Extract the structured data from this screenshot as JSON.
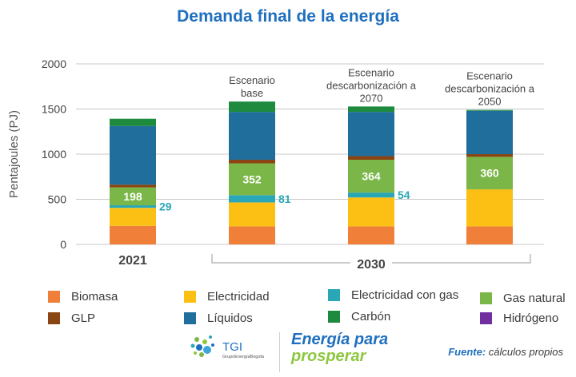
{
  "title": "Demanda final de la energía",
  "chart_data": {
    "type": "bar",
    "stacked": true,
    "ylabel": "Pentajoules (PJ)",
    "ylim": [
      0,
      2000
    ],
    "yticks": [
      0,
      500,
      1000,
      1500,
      2000
    ],
    "grid": true,
    "categories": [
      "2021",
      "Escenario base",
      "Escenario descarbonización a 2070",
      "Escenario descarbonización a 2050"
    ],
    "category_labels": [
      [],
      [
        "Escenario",
        "base"
      ],
      [
        "Escenario",
        "descarbonización a",
        "2070"
      ],
      [
        "Escenario",
        "descarbonización a",
        "2050"
      ]
    ],
    "group_labels": [
      "2021",
      "2030"
    ],
    "series": [
      {
        "name": "Biomasa",
        "color": "#f07f3a",
        "values": [
          205,
          200,
          200,
          200
        ]
      },
      {
        "name": "Electricidad",
        "color": "#fcc015",
        "values": [
          200,
          265,
          320,
          410
        ]
      },
      {
        "name": "Electricidad con gas",
        "color": "#2aa7b6",
        "values": [
          29,
          81,
          54,
          0
        ]
      },
      {
        "name": "Gas natural",
        "color": "#7ab648",
        "values": [
          198,
          352,
          364,
          360
        ]
      },
      {
        "name": "GLP",
        "color": "#8b4513",
        "values": [
          30,
          40,
          40,
          30
        ]
      },
      {
        "name": "Líquidos",
        "color": "#1f6e9b",
        "values": [
          650,
          530,
          490,
          480
        ]
      },
      {
        "name": "Carbón",
        "color": "#1e8a3e",
        "values": [
          80,
          115,
          60,
          10
        ]
      },
      {
        "name": "Hidrógeno",
        "color": "#7030a0",
        "values": [
          0,
          0,
          0,
          0
        ]
      }
    ],
    "data_labels": [
      {
        "series": "Gas natural",
        "values": [
          "198",
          "352",
          "364",
          "360"
        ]
      },
      {
        "series": "Electricidad con gas",
        "values": [
          "29",
          "81",
          "54",
          ""
        ]
      }
    ]
  },
  "legend": [
    {
      "label": "Biomasa",
      "color": "#f07f3a"
    },
    {
      "label": "Electricidad",
      "color": "#fcc015"
    },
    {
      "label": "Electricidad con gas",
      "color": "#2aa7b6"
    },
    {
      "label": "Gas natural",
      "color": "#7ab648"
    },
    {
      "label": "GLP",
      "color": "#8b4513"
    },
    {
      "label": "Líquidos",
      "color": "#1f6e9b"
    },
    {
      "label": "Carbón",
      "color": "#1e8a3e"
    },
    {
      "label": "Hidrógeno",
      "color": "#7030a0"
    }
  ],
  "footer": {
    "logo_text": "TGI",
    "logo_subtext": "GrupoEnergíaBogotá",
    "brand_line1": "Energía para",
    "brand_line2": "prosperar",
    "source_label": "Fuente:",
    "source_text": "cálculos propios"
  }
}
